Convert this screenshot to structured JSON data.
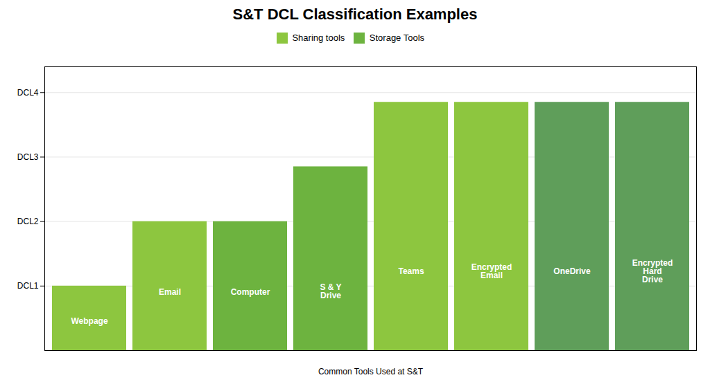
{
  "chart_data": {
    "type": "bar",
    "title": "S&T DCL Classification Examples",
    "xlabel": "Common Tools Used at S&T",
    "categories": [
      "Webpage",
      "Email",
      "Computer",
      "S & Y\nDrive",
      "Teams",
      "Encrypted\nEmail",
      "OneDrive",
      "Encrypted\nHard\nDrive"
    ],
    "series": [
      {
        "name": "Sharing tools",
        "color": "#8dc63f",
        "values": [
          1.0,
          2.0,
          null,
          null,
          3.85,
          3.85,
          null,
          null
        ]
      },
      {
        "name": "Storage Tools",
        "color": "#6db33f",
        "values": [
          null,
          null,
          2.0,
          2.85,
          null,
          null,
          3.85,
          3.85
        ],
        "colors": [
          "#6db33f",
          "#6db33f",
          "#5f9e5a",
          "#5f9e5a"
        ]
      }
    ],
    "ylim": [
      0,
      4.4
    ],
    "yticks": [
      {
        "value": 1,
        "label": "DCL1"
      },
      {
        "value": 2,
        "label": "DCL2"
      },
      {
        "value": 3,
        "label": "DCL3"
      },
      {
        "value": 4,
        "label": "DCL4"
      }
    ],
    "grid": true,
    "tick_labels": "y",
    "legend": "top"
  }
}
